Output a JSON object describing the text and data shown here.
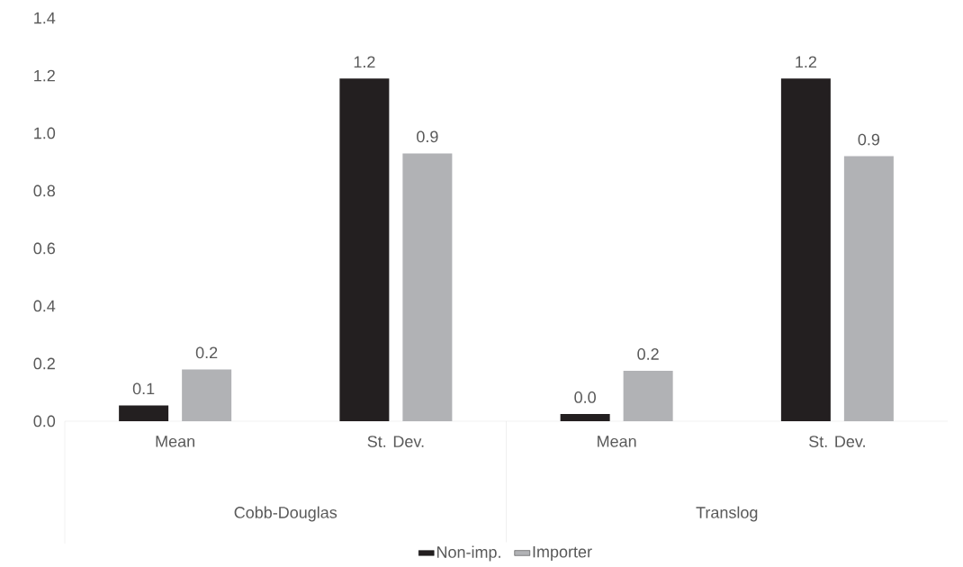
{
  "chart_data": {
    "type": "bar",
    "categories": [
      "Mean",
      "St. Dev.",
      "Mean",
      "St. Dev."
    ],
    "series": [
      {
        "name": "Non-imp.",
        "color": "#231f20",
        "values": [
          0.055,
          1.19,
          0.025,
          1.19
        ],
        "value_labels": [
          "0.1",
          "1.2",
          "0.0",
          "1.2"
        ]
      },
      {
        "name": "Importer",
        "color": "#b1b2b5",
        "values": [
          0.18,
          0.93,
          0.175,
          0.92
        ],
        "value_labels": [
          "0.2",
          "0.9",
          "0.2",
          "0.9"
        ]
      }
    ],
    "annotations": [
      "Cobb-Douglas",
      "Translog"
    ],
    "ylim": [
      0,
      1.4
    ],
    "yticks": [
      {
        "value": 0,
        "label": "0.0"
      },
      {
        "value": 0.2,
        "label": "0.2"
      },
      {
        "value": 0.4,
        "label": "0.4"
      },
      {
        "value": 0.6,
        "label": "0.6"
      },
      {
        "value": 0.8,
        "label": "0.8"
      },
      {
        "value": 1.0,
        "label": "1.0"
      },
      {
        "value": 1.2,
        "label": "1.2"
      },
      {
        "value": 1.4,
        "label": "1.4"
      }
    ],
    "legend": "bottom"
  }
}
